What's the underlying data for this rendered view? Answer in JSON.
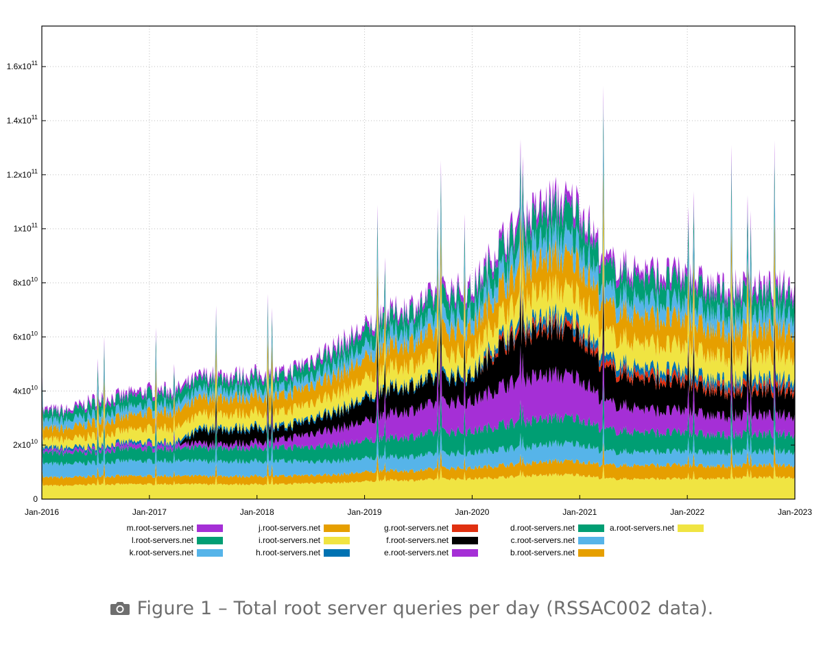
{
  "chart_data": {
    "type": "area",
    "stacked": true,
    "title": "",
    "xlabel": "",
    "ylabel": "",
    "x_ticks": [
      "Jan-2016",
      "Jan-2017",
      "Jan-2018",
      "Jan-2019",
      "Jan-2020",
      "Jan-2021",
      "Jan-2022",
      "Jan-2023"
    ],
    "y_ticks": [
      {
        "value": 0,
        "mant": "0",
        "exp": ""
      },
      {
        "value": 20000000000,
        "mant": "2x10",
        "exp": "10"
      },
      {
        "value": 40000000000,
        "mant": "4x10",
        "exp": "10"
      },
      {
        "value": 60000000000,
        "mant": "6x10",
        "exp": "10"
      },
      {
        "value": 80000000000,
        "mant": "8x10",
        "exp": "10"
      },
      {
        "value": 100000000000,
        "mant": "1x10",
        "exp": "11"
      },
      {
        "value": 120000000000,
        "mant": "1.2x10",
        "exp": "11"
      },
      {
        "value": 140000000000,
        "mant": "1.4x10",
        "exp": "11"
      },
      {
        "value": 160000000000,
        "mant": "1.6x10",
        "exp": "11"
      }
    ],
    "xlim": [
      2016.0,
      2023.0
    ],
    "ylim": [
      0,
      175000000000
    ],
    "legend_placement": "bottom",
    "grid": true,
    "x": [
      2016.0,
      2016.25,
      2016.5,
      2016.75,
      2017.0,
      2017.25,
      2017.5,
      2017.75,
      2018.0,
      2018.25,
      2018.5,
      2018.75,
      2019.0,
      2019.25,
      2019.5,
      2019.75,
      2020.0,
      2020.25,
      2020.5,
      2020.75,
      2021.0,
      2021.25,
      2021.5,
      2021.75,
      2022.0,
      2022.25,
      2022.5,
      2022.75,
      2023.0
    ],
    "unit_note": "values in 1e9 queries per day",
    "series": [
      {
        "name": "a.root-servers.net",
        "color": "#f0e442",
        "values": [
          5,
          5,
          5.5,
          5.5,
          5.5,
          5.5,
          5.5,
          5.5,
          5.5,
          5.5,
          6,
          6,
          6.5,
          7,
          7,
          7.5,
          7.5,
          8,
          8.5,
          9,
          9,
          7.5,
          7.5,
          7.5,
          7.5,
          7.5,
          8,
          8,
          8
        ]
      },
      {
        "name": "b.root-servers.net",
        "color": "#e69f00",
        "values": [
          3,
          3,
          3,
          3,
          3,
          3,
          3,
          3,
          3,
          3,
          3,
          3,
          3.5,
          3.5,
          3.5,
          4,
          4,
          4.5,
          4.5,
          5,
          5,
          5,
          5,
          5,
          5,
          4.5,
          4.5,
          4.5,
          4.5
        ]
      },
      {
        "name": "c.root-servers.net",
        "color": "#56b4e9",
        "values": [
          5,
          5,
          5,
          5.5,
          5.5,
          5.5,
          5.5,
          5.5,
          5.5,
          5.5,
          5,
          5,
          5,
          5,
          5.5,
          5.5,
          5.5,
          6,
          6,
          6.5,
          6.5,
          5,
          5,
          5,
          5,
          5,
          5,
          5,
          5
        ]
      },
      {
        "name": "d.root-servers.net",
        "color": "#009e73",
        "values": [
          4,
          4,
          4,
          4.5,
          4.5,
          4.5,
          5,
          5,
          5,
          5,
          5.5,
          6,
          6.5,
          7,
          7.5,
          8,
          8,
          9,
          9.5,
          9.5,
          9.5,
          8,
          7.5,
          7,
          7,
          6.5,
          6.5,
          6.5,
          6.5
        ]
      },
      {
        "name": "e.root-servers.net",
        "color": "#a52fd6",
        "values": [
          1,
          1,
          1,
          1.5,
          1.5,
          1.5,
          1.5,
          1.5,
          2,
          3,
          5,
          6,
          7,
          9,
          10,
          11,
          11,
          14,
          16,
          16,
          15,
          10,
          9,
          8,
          8,
          7,
          7,
          7,
          7
        ]
      },
      {
        "name": "f.root-servers.net",
        "color": "#000000",
        "values": [
          0,
          0,
          0,
          0,
          0,
          0,
          5,
          5,
          5,
          4,
          5,
          6,
          8,
          9,
          9,
          9,
          9,
          15,
          16,
          17,
          16,
          12,
          11,
          11,
          10,
          9,
          9,
          9,
          9
        ]
      },
      {
        "name": "g.root-servers.net",
        "color": "#e03010",
        "values": [
          0,
          0,
          0,
          0,
          0,
          0,
          0,
          0,
          0,
          0,
          0,
          0,
          0,
          0,
          0,
          0,
          0,
          1.5,
          2,
          2,
          2,
          2,
          2,
          2,
          2,
          2,
          2,
          2,
          2
        ]
      },
      {
        "name": "h.root-servers.net",
        "color": "#0072b2",
        "values": [
          1,
          1,
          1,
          1,
          1,
          1,
          1,
          1,
          1,
          1,
          1,
          1,
          1,
          1,
          1,
          1.5,
          1.5,
          2,
          2.5,
          3,
          3,
          2.5,
          2.5,
          2.5,
          2.5,
          2.5,
          2.5,
          2.5,
          2.5
        ]
      },
      {
        "name": "i.root-servers.net",
        "color": "#f0e442",
        "values": [
          3,
          3,
          4,
          4,
          5,
          5,
          5,
          5,
          5,
          5,
          5.5,
          6,
          6.5,
          7,
          7,
          7.5,
          7.5,
          8,
          9,
          10,
          10,
          9,
          9,
          9,
          9,
          8.5,
          8.5,
          8.5,
          8.5
        ]
      },
      {
        "name": "j.root-servers.net",
        "color": "#e69f00",
        "values": [
          4,
          4,
          5,
          5,
          6,
          6,
          6,
          6,
          6,
          6,
          6.5,
          7,
          7.5,
          8,
          8.5,
          9,
          9,
          10,
          11,
          12,
          12,
          10,
          10,
          10,
          10,
          9.5,
          9.5,
          9.5,
          9.5
        ]
      },
      {
        "name": "k.root-servers.net",
        "color": "#56b4e9",
        "values": [
          3,
          3,
          3,
          3,
          3,
          3,
          3,
          3,
          3,
          3,
          3.5,
          4,
          4.5,
          5,
          5,
          5.5,
          5.5,
          6,
          7,
          7.5,
          7.5,
          6,
          6,
          6,
          6,
          6,
          6,
          6,
          6
        ]
      },
      {
        "name": "l.root-servers.net",
        "color": "#009e73",
        "values": [
          3,
          3,
          4,
          4,
          4,
          4,
          4,
          4,
          4,
          4,
          4.5,
          5,
          5.5,
          6,
          6.5,
          7,
          7,
          8,
          9,
          10,
          10,
          8,
          8,
          8,
          8,
          7.5,
          7.5,
          7.5,
          7.5
        ]
      },
      {
        "name": "m.root-servers.net",
        "color": "#a52fd6",
        "values": [
          1,
          1,
          1.5,
          1.5,
          1.5,
          1.5,
          1.5,
          1.5,
          1.5,
          1.5,
          1.5,
          2,
          2,
          2,
          2,
          2.5,
          2.5,
          3,
          3.5,
          4,
          4,
          3,
          3,
          3,
          3,
          3,
          3,
          3,
          3
        ]
      }
    ],
    "legend": [
      {
        "label": "m.root-servers.net",
        "color": "#a52fd6"
      },
      {
        "label": "l.root-servers.net",
        "color": "#009e73"
      },
      {
        "label": "k.root-servers.net",
        "color": "#56b4e9"
      },
      {
        "label": "j.root-servers.net",
        "color": "#e69f00"
      },
      {
        "label": "i.root-servers.net",
        "color": "#f0e442"
      },
      {
        "label": "h.root-servers.net",
        "color": "#0072b2"
      },
      {
        "label": "g.root-servers.net",
        "color": "#e03010"
      },
      {
        "label": "f.root-servers.net",
        "color": "#000000"
      },
      {
        "label": "e.root-servers.net",
        "color": "#a52fd6"
      },
      {
        "label": "d.root-servers.net",
        "color": "#009e73"
      },
      {
        "label": "c.root-servers.net",
        "color": "#56b4e9"
      },
      {
        "label": "b.root-servers.net",
        "color": "#e69f00"
      },
      {
        "label": "a.root-servers.net",
        "color": "#f0e442"
      }
    ]
  },
  "caption": {
    "icon": "camera-icon",
    "text": "Figure 1 – Total root server queries per day (RSSAC002 data)."
  }
}
